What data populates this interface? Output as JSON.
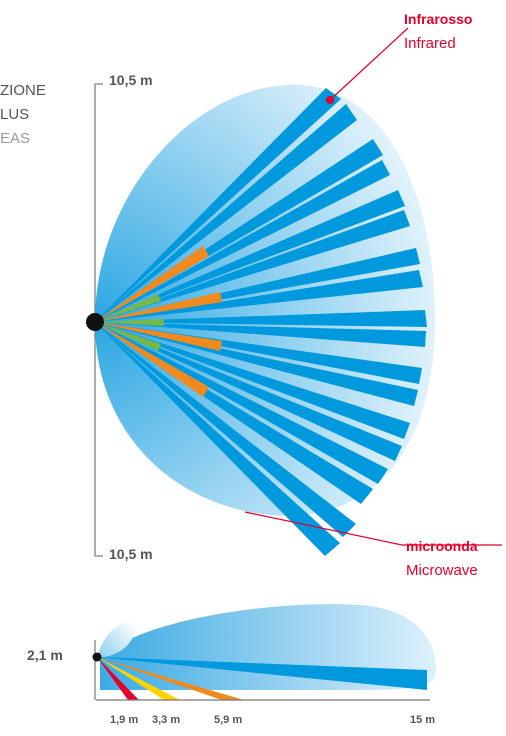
{
  "left_text": {
    "line1": "ZIONE",
    "line2": "LUS",
    "line3": "EAS"
  },
  "top_view": {
    "top_dim": "10,5 m",
    "bottom_dim": "10,5 m"
  },
  "labels": {
    "infrared_it": "Infrarosso",
    "infrared_en": "Infrared",
    "microwave_it": "microonda",
    "microwave_en": "Microwave"
  },
  "side_view": {
    "height_label": "2,1 m",
    "ticks": [
      "1,9 m",
      "3,3 m",
      "5,9 m",
      "15 m"
    ]
  },
  "colors": {
    "infrared_beam": "#0099dd",
    "microwave_field": "#7cc8ee",
    "accent_red": "#e4002b",
    "orange_beam": "#f08a1e",
    "green_beam": "#77b84a",
    "yellow_beam": "#ffd200",
    "axis_gray": "#777777"
  }
}
